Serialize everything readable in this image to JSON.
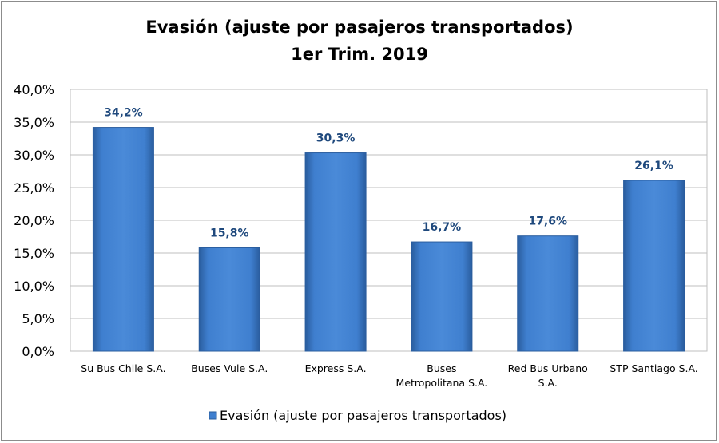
{
  "chart_data": {
    "type": "bar",
    "title": "Evasión (ajuste por pasajeros transportados)",
    "subtitle": "1er Trim. 2019",
    "categories": [
      [
        "Su Bus Chile S.A."
      ],
      [
        "Buses Vule S.A."
      ],
      [
        "Express S.A."
      ],
      [
        "Buses",
        "Metropolitana S.A."
      ],
      [
        "Red Bus Urbano",
        "S.A."
      ],
      [
        "STP Santiago S.A."
      ]
    ],
    "series": [
      {
        "name": "Evasión (ajuste por pasajeros transportados)",
        "values": [
          34.2,
          15.8,
          30.3,
          16.7,
          17.6,
          26.1
        ],
        "color": "#3f7fcf"
      }
    ],
    "data_labels": [
      "34,2%",
      "15,8%",
      "30,3%",
      "16,7%",
      "17,6%",
      "26,1%"
    ],
    "ylim": [
      0,
      40
    ],
    "yticks": [
      "0,0%",
      "5,0%",
      "10,0%",
      "15,0%",
      "20,0%",
      "25,0%",
      "30,0%",
      "35,0%",
      "40,0%"
    ],
    "grid": true,
    "legend_position": "bottom",
    "label_color": "#1f497d"
  }
}
